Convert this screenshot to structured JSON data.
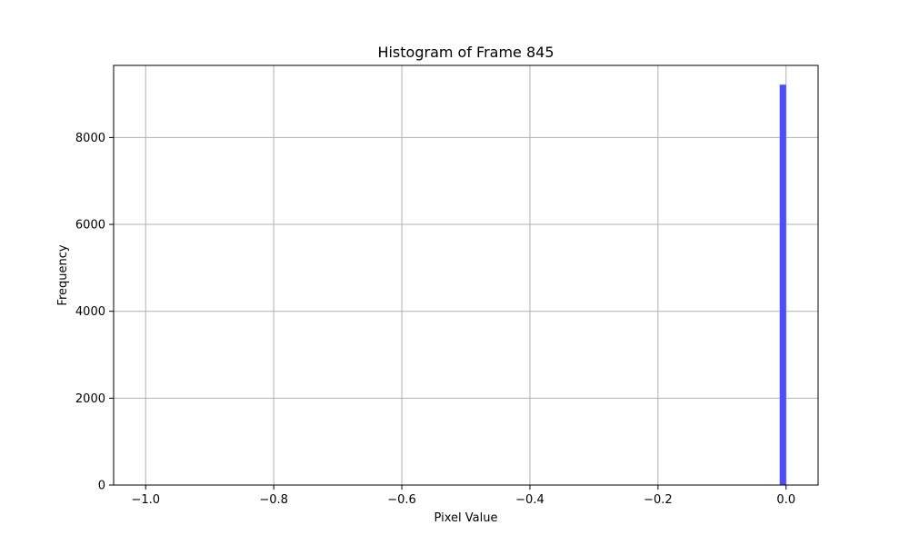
{
  "chart_data": {
    "type": "bar",
    "title": "Histogram of Frame 845",
    "xlabel": "Pixel Value",
    "ylabel": "Frequency",
    "xlim": [
      -1.05,
      0.05
    ],
    "ylim": [
      0,
      9660
    ],
    "x_ticks": [
      -1.0,
      -0.8,
      -0.6,
      -0.4,
      -0.2,
      0.0
    ],
    "x_tick_labels": [
      "−1.0",
      "−0.8",
      "−0.6",
      "−0.4",
      "−0.2",
      "0.0"
    ],
    "y_ticks": [
      0,
      2000,
      4000,
      6000,
      8000
    ],
    "y_tick_labels": [
      "0",
      "2000",
      "4000",
      "6000",
      "8000"
    ],
    "grid": true,
    "bins": [
      {
        "x_start": -0.01,
        "x_end": 0.0,
        "count": 9216
      }
    ],
    "colors": {
      "bar": "#4d4dff",
      "grid": "#b0b0b0",
      "axes": "#000000"
    }
  }
}
